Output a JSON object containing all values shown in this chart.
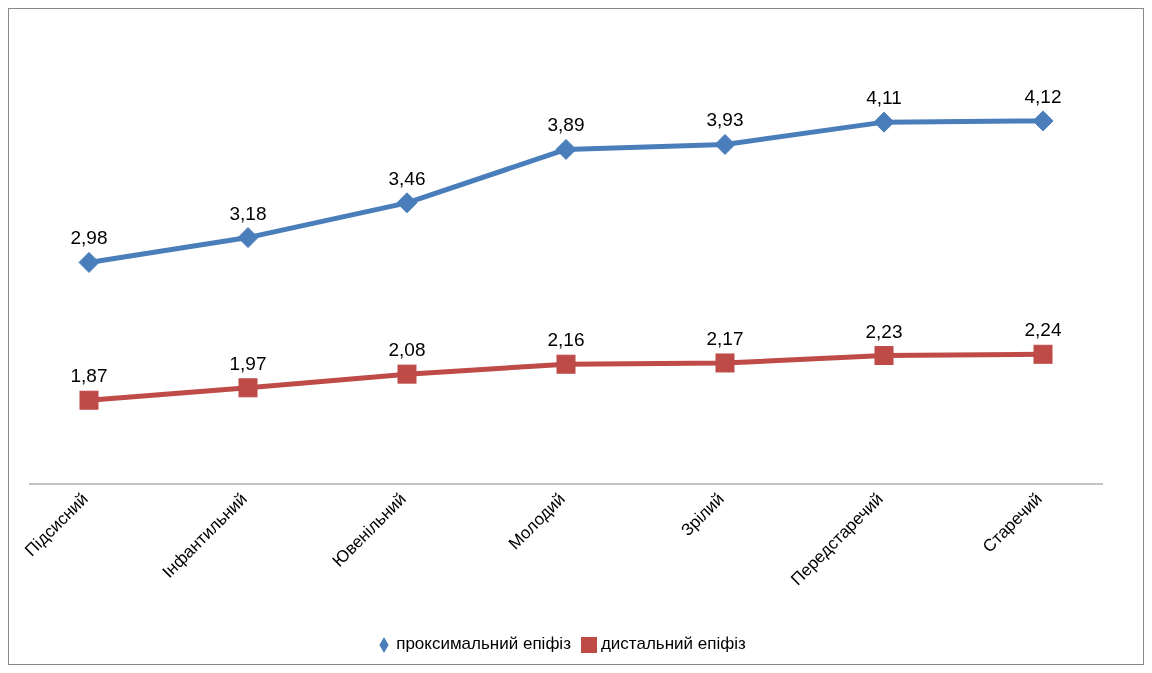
{
  "chart_data": {
    "type": "line",
    "categories": [
      "Підсисний",
      "Інфантильний",
      "Ювенільний",
      "Молодий",
      "Зрілий",
      "Передстаречий",
      "Старечий"
    ],
    "series": [
      {
        "name": "проксимальний епіфіз",
        "color": "#4a7ebb",
        "marker": "diamond",
        "values": [
          2.98,
          3.18,
          3.46,
          3.89,
          3.93,
          4.11,
          4.12
        ],
        "value_labels": [
          "2,98",
          "3,18",
          "3,46",
          "3,89",
          "3,93",
          "4,11",
          "4,12"
        ]
      },
      {
        "name": "дистальний епіфіз",
        "color": "#be4b48",
        "marker": "square",
        "values": [
          1.87,
          1.97,
          2.08,
          2.16,
          2.17,
          2.23,
          2.24
        ],
        "value_labels": [
          "1,87",
          "1,97",
          "2,08",
          "2,16",
          "2,17",
          "2,23",
          "2,24"
        ]
      }
    ],
    "legend": "bottom",
    "line_style": "solid",
    "tick_labels": "x"
  }
}
